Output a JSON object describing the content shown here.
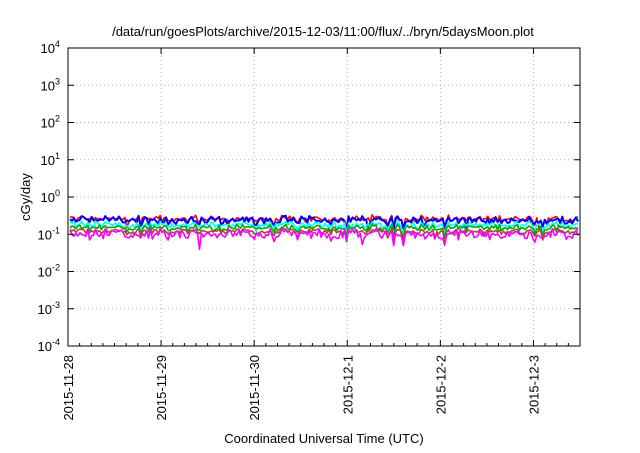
{
  "chart_data": {
    "type": "line",
    "title": "/data/run/goesPlots/archive/2015-12-03/11:00/flux/../bryn/5daysMoon.plot",
    "xlabel": "Coordinated Universal Time (UTC)",
    "ylabel": "cGy/day",
    "yscale": "log",
    "ylim": [
      0.0001,
      10000
    ],
    "xlim": [
      "2015-11-28",
      "2015-12-03T12:00"
    ],
    "grid": true,
    "x_tick_labels": [
      "2015-11-28",
      "2015-11-29",
      "2015-11-30",
      "2015-12-1",
      "2015-12-2",
      "2015-12-3"
    ],
    "y_ticks": [
      {
        "base": "10",
        "exp": "-4"
      },
      {
        "base": "10",
        "exp": "-3"
      },
      {
        "base": "10",
        "exp": "-2"
      },
      {
        "base": "10",
        "exp": "-1"
      },
      {
        "base": "10",
        "exp": "0"
      },
      {
        "base": "10",
        "exp": "1"
      },
      {
        "base": "10",
        "exp": "2"
      },
      {
        "base": "10",
        "exp": "3"
      },
      {
        "base": "10",
        "exp": "4"
      }
    ],
    "series": [
      {
        "color": "#ff0000",
        "level": 0.26,
        "spread": 0.1
      },
      {
        "color": "#0000ff",
        "level": 0.24,
        "spread": 0.16
      },
      {
        "color": "#00ffff",
        "level": 0.18,
        "spread": 0.1
      },
      {
        "color": "#00aa00",
        "level": 0.15,
        "spread": 0.08
      },
      {
        "color": "#a0522d",
        "level": 0.12,
        "spread": 0.06
      },
      {
        "color": "#ff00ff",
        "level": 0.1,
        "spread": 0.22
      }
    ]
  }
}
